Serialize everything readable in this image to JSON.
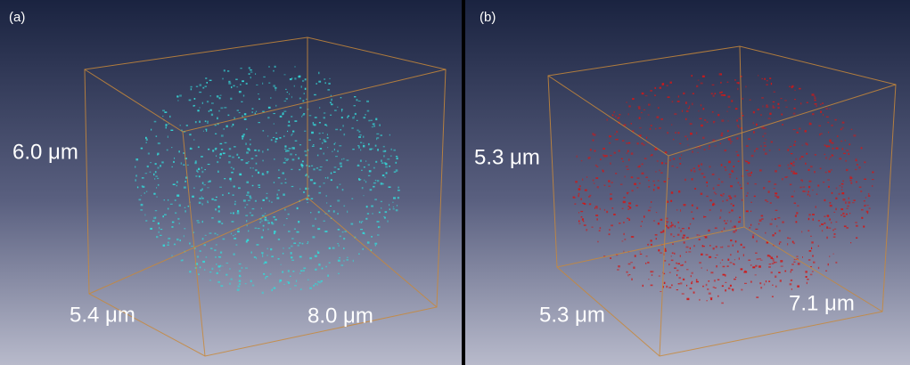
{
  "panels": [
    {
      "label": "(a)",
      "height": "6.0 μm",
      "depth": "5.4 μm",
      "width": "8.0 μm",
      "color": "#35d6d6"
    },
    {
      "label": "(b)",
      "height": "5.3 μm",
      "depth": "5.3 μm",
      "width": "7.1 μm",
      "color": "#d01818"
    }
  ]
}
